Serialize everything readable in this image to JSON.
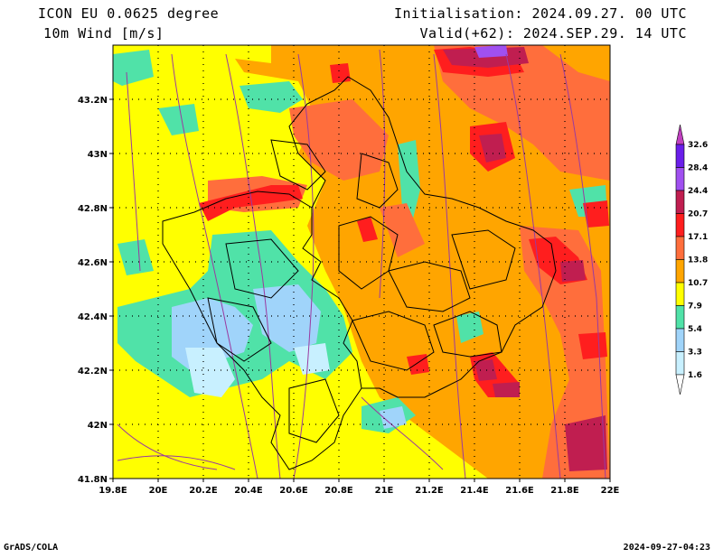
{
  "header": {
    "model": "ICON EU 0.0625 degree",
    "variable": "10m Wind [m/s]",
    "initialisation": "Initialisation: 2024.09.27. 00 UTC",
    "valid": "Valid(+62): 2024.SEP.29. 14 UTC"
  },
  "footer": {
    "credit": "GrADS/COLA",
    "timestamp": "2024-09-27-04:23"
  },
  "map": {
    "lon_range": [
      19.8,
      22.0
    ],
    "lat_range": [
      41.8,
      43.4
    ],
    "lon_ticks": [
      "19.8E",
      "20E",
      "20.2E",
      "20.4E",
      "20.6E",
      "20.8E",
      "21E",
      "21.2E",
      "21.4E",
      "21.6E",
      "21.8E",
      "22E"
    ],
    "lat_ticks": [
      "41.8N",
      "42N",
      "42.2N",
      "42.4N",
      "42.6N",
      "42.8N",
      "43N",
      "43.2N"
    ],
    "grid": "dotted"
  },
  "colorbar": {
    "levels": [
      "1.6",
      "3.3",
      "5.4",
      "7.9",
      "10.7",
      "13.8",
      "17.1",
      "20.7",
      "24.4",
      "28.4",
      "32.6"
    ],
    "colors": [
      "#ffffff",
      "#c8f0ff",
      "#a0d4fa",
      "#50e2a8",
      "#ffff00",
      "#ffa500",
      "#ff6e3c",
      "#ff1e1e",
      "#c01e50",
      "#a050f0",
      "#6a1eea",
      "#c040c0"
    ]
  },
  "colors": {
    "border": "#000000",
    "streamline": "#9a3aa0"
  }
}
